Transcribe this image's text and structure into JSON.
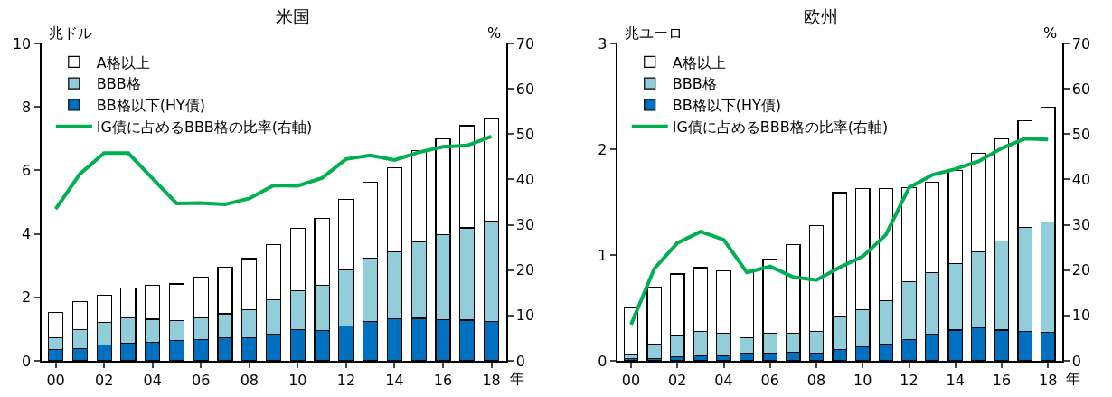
{
  "chart_data": [
    {
      "type": "bar",
      "title": "米国",
      "ylabel": "兆ドル",
      "y2label": "%",
      "xlabel": "年",
      "stacked": true,
      "legend": "top left",
      "grid": false,
      "categories": [
        "00",
        null,
        "02",
        null,
        "04",
        null,
        "06",
        null,
        "08",
        null,
        "10",
        null,
        "12",
        null,
        "14",
        null,
        "16",
        null,
        "18"
      ],
      "ylim": [
        0,
        10
      ],
      "yticks": [
        0,
        2,
        4,
        6,
        8,
        10
      ],
      "y2lim": [
        0,
        70
      ],
      "y2ticks": [
        0,
        10,
        20,
        30,
        40,
        50,
        60,
        70
      ],
      "series": [
        {
          "name": "BB格以下(HY債)",
          "color": "#0070c0",
          "values": [
            0.35,
            0.38,
            0.5,
            0.56,
            0.58,
            0.64,
            0.68,
            0.72,
            0.72,
            0.83,
            0.98,
            0.96,
            1.09,
            1.24,
            1.33,
            1.34,
            1.3,
            1.28,
            1.24
          ]
        },
        {
          "name": "BBB格",
          "color": "#92cddc",
          "values": [
            0.38,
            0.6,
            0.72,
            0.79,
            0.73,
            0.63,
            0.67,
            0.76,
            0.89,
            1.09,
            1.23,
            1.42,
            1.77,
            1.99,
            2.11,
            2.42,
            2.68,
            2.91,
            3.15
          ]
        },
        {
          "name": "A格以上",
          "color": "#ffffff",
          "values": [
            0.8,
            0.88,
            0.85,
            0.95,
            1.08,
            1.15,
            1.29,
            1.48,
            1.61,
            1.74,
            1.96,
            2.11,
            2.22,
            2.39,
            2.64,
            2.86,
            3.01,
            3.22,
            3.24
          ]
        },
        {
          "name": "IG債に占めるBBB格の比率(右軸)",
          "type": "line",
          "axis": "y2",
          "color": "#00b050",
          "values": [
            33.5,
            41.2,
            45.8,
            45.8,
            40.2,
            34.7,
            34.8,
            34.5,
            35.8,
            38.7,
            38.6,
            40.3,
            44.5,
            45.3,
            44.3,
            46.0,
            47.2,
            47.5,
            49.5
          ]
        }
      ]
    },
    {
      "type": "bar",
      "title": "欧州",
      "ylabel": "兆ユーロ",
      "y2label": "%",
      "xlabel": "年",
      "stacked": true,
      "legend": "top left",
      "grid": false,
      "categories": [
        "00",
        null,
        "02",
        null,
        "04",
        null,
        "06",
        null,
        "08",
        null,
        "10",
        null,
        "12",
        null,
        "14",
        null,
        "16",
        null,
        "18"
      ],
      "ylim": [
        0,
        3
      ],
      "yticks": [
        0,
        1,
        2,
        3
      ],
      "y2lim": [
        0,
        70
      ],
      "y2ticks": [
        0,
        10,
        20,
        30,
        40,
        50,
        60,
        70
      ],
      "series": [
        {
          "name": "BB格以下(HY債)",
          "color": "#0070c0",
          "values": [
            0.02,
            0.02,
            0.04,
            0.05,
            0.05,
            0.07,
            0.07,
            0.08,
            0.07,
            0.11,
            0.13,
            0.16,
            0.2,
            0.25,
            0.29,
            0.31,
            0.29,
            0.28,
            0.27
          ]
        },
        {
          "name": "BBB格",
          "color": "#92cddc",
          "values": [
            0.04,
            0.14,
            0.2,
            0.23,
            0.21,
            0.15,
            0.19,
            0.18,
            0.21,
            0.31,
            0.35,
            0.41,
            0.55,
            0.58,
            0.63,
            0.72,
            0.84,
            0.98,
            1.04
          ]
        },
        {
          "name": "A格以上",
          "color": "#ffffff",
          "values": [
            0.44,
            0.54,
            0.58,
            0.6,
            0.59,
            0.65,
            0.7,
            0.84,
            1.0,
            1.17,
            1.15,
            1.06,
            0.89,
            0.86,
            0.88,
            0.93,
            0.97,
            1.01,
            1.09
          ]
        },
        {
          "name": "IG債に占めるBBB格の比率(右軸)",
          "type": "line",
          "axis": "y2",
          "color": "#00b050",
          "values": [
            8,
            20.3,
            26,
            28.5,
            26.7,
            19.5,
            20.8,
            18.5,
            17.8,
            20.6,
            23,
            27.8,
            38.2,
            41,
            42.3,
            44,
            46.9,
            49,
            48.8
          ]
        }
      ]
    }
  ]
}
